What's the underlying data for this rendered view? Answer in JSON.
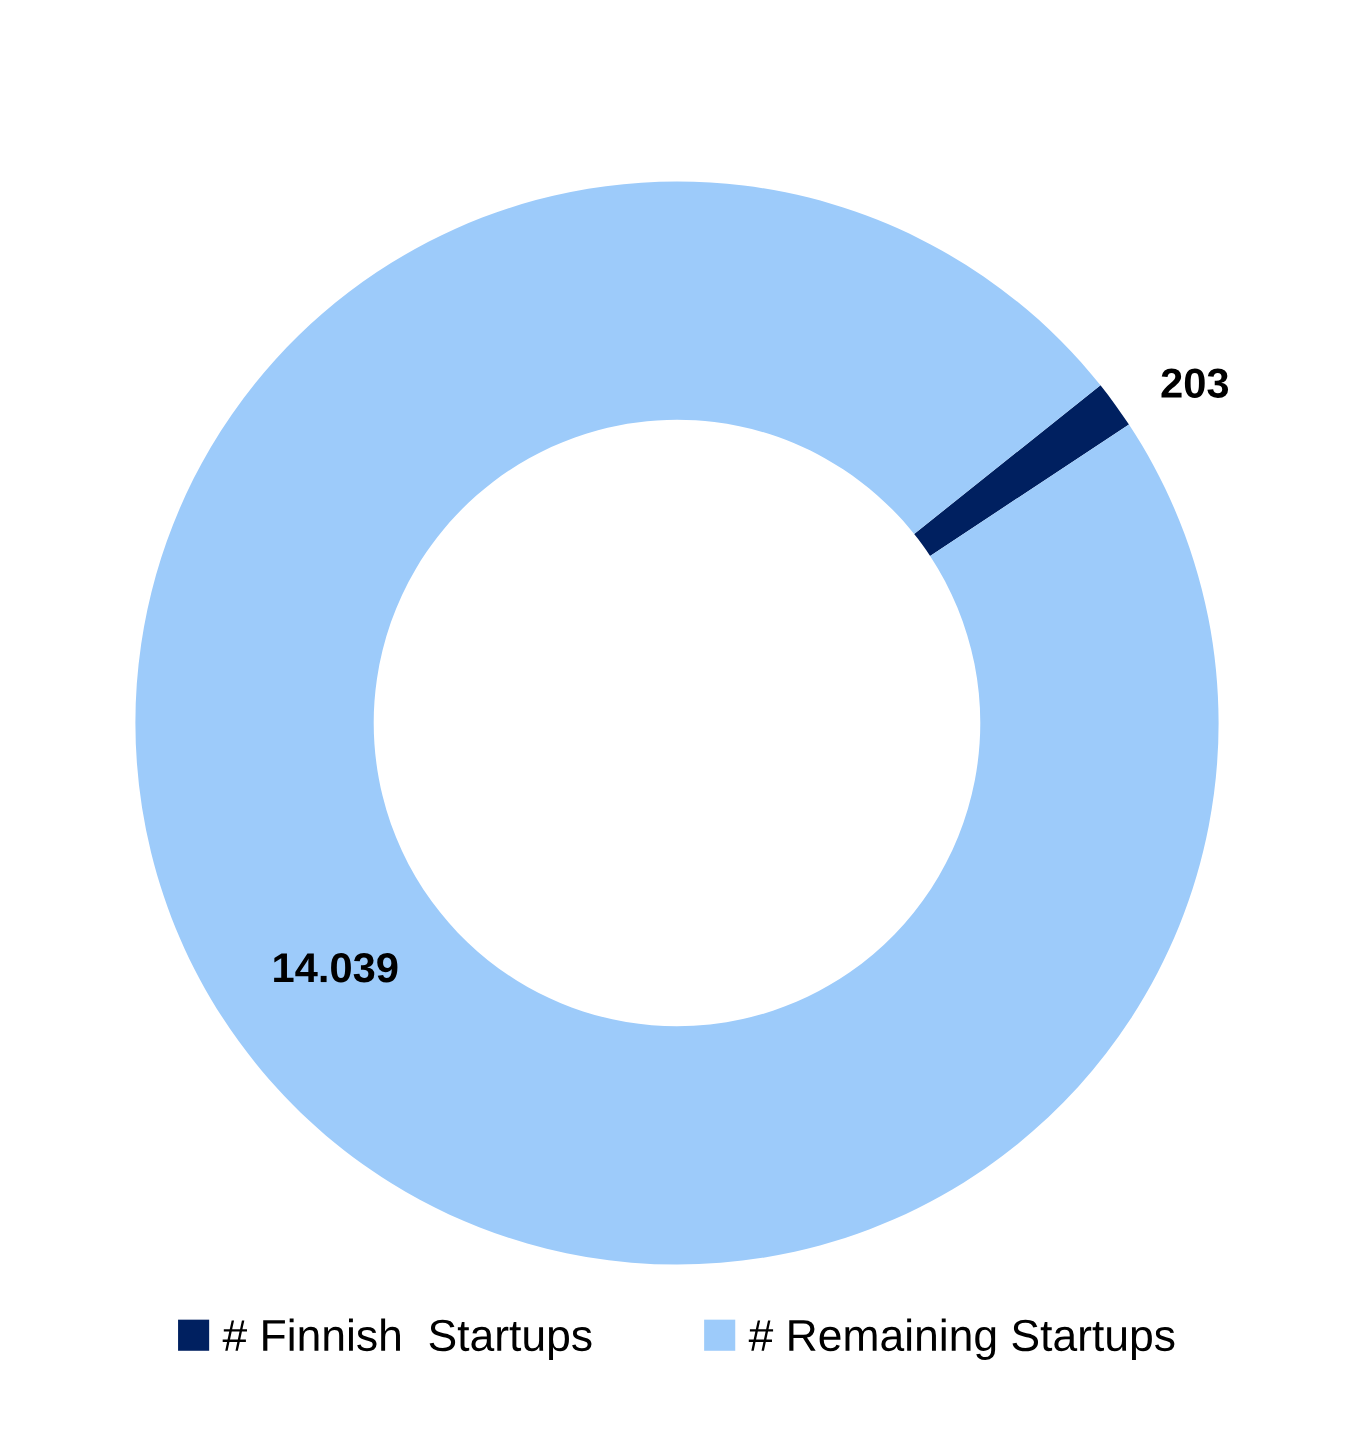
{
  "chart_data": {
    "type": "donut",
    "categories": [
      "# Finnish  Startups",
      "# Remaining Startups"
    ],
    "values": [
      203,
      14039
    ],
    "colors": [
      "#002060",
      "#9dcbfa"
    ],
    "value_labels": [
      "203",
      "14.039"
    ],
    "legend": "bottom"
  }
}
